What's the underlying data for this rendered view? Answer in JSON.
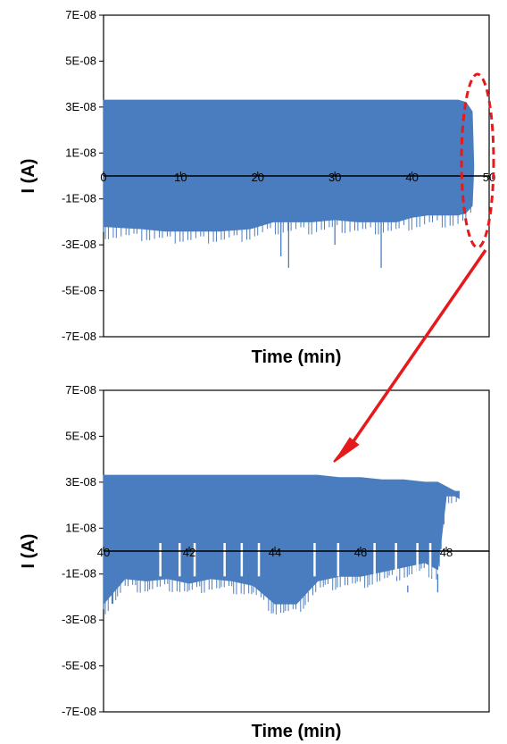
{
  "colors": {
    "series": "#4a7dbf",
    "ellipse": "#e41a1c",
    "arrow": "#e41a1c",
    "axis": "#000000"
  },
  "annotation": {
    "type": "dashed-ellipse-with-arrow",
    "meaning": "zoom on the end of the top trace into the bottom panel"
  },
  "chart_data": [
    {
      "type": "line",
      "xlabel": "Time (min)",
      "ylabel": "I (A)",
      "xlim": [
        0,
        50
      ],
      "ylim": [
        -7e-08,
        7e-08
      ],
      "x_ticks": [
        "0",
        "10",
        "20",
        "30",
        "40",
        "50"
      ],
      "y_ticks": [
        "7E-08",
        "5E-08",
        "3E-08",
        "1E-08",
        "-1E-08",
        "-3E-08",
        "-5E-08",
        "-7E-08"
      ],
      "grid": false,
      "legend": "none",
      "series": [
        {
          "x": [
            0,
            5,
            8,
            10,
            15,
            19,
            20,
            22,
            25,
            27,
            30,
            33,
            35,
            38,
            40,
            42,
            44,
            46,
            47,
            47.8,
            48
          ],
          "upper": [
            3.3e-08,
            3.3e-08,
            3.3e-08,
            3.3e-08,
            3.3e-08,
            3.3e-08,
            3.3e-08,
            3.3e-08,
            3.3e-08,
            3.3e-08,
            3.3e-08,
            3.3e-08,
            3.3e-08,
            3.3e-08,
            3.3e-08,
            3.3e-08,
            3.3e-08,
            3.3e-08,
            3.2e-08,
            2.8e-08,
            5e-09
          ],
          "lower": [
            -2.2e-08,
            -2.3e-08,
            -2.4e-08,
            -2.4e-08,
            -2.4e-08,
            -2.3e-08,
            -2.2e-08,
            -2e-08,
            -2e-08,
            -2e-08,
            -1.9e-08,
            -2e-08,
            -2e-08,
            -2e-08,
            -1.8e-08,
            -1.7e-08,
            -1.7e-08,
            -1.7e-08,
            -1.6e-08,
            -1.3e-08,
            3e-09
          ],
          "spikes": [
            {
              "x": 20,
              "y": 1.5e-08
            },
            {
              "x": 23,
              "y": -3.5e-08
            },
            {
              "x": 24,
              "y": -4e-08
            },
            {
              "x": 30,
              "y": -3e-08
            },
            {
              "x": 36,
              "y": -4e-08
            }
          ]
        }
      ]
    },
    {
      "type": "line",
      "xlabel": "Time (min)",
      "ylabel": "I (A)",
      "xlim": [
        40,
        49
      ],
      "ylim": [
        -7e-08,
        7e-08
      ],
      "x_ticks": [
        "40",
        "42",
        "44",
        "46",
        "48"
      ],
      "y_ticks": [
        "7E-08",
        "5E-08",
        "3E-08",
        "1E-08",
        "-1E-08",
        "-3E-08",
        "-5E-08",
        "-7E-08"
      ],
      "grid": false,
      "legend": "none",
      "series": [
        {
          "x": [
            40,
            40.5,
            41,
            41.5,
            42,
            42.5,
            43,
            43.5,
            44,
            44.5,
            45,
            45.5,
            46,
            46.5,
            47,
            47.5,
            47.8,
            48,
            48.2,
            48.3
          ],
          "upper": [
            3.3e-08,
            3.3e-08,
            3.3e-08,
            3.3e-08,
            3.3e-08,
            3.3e-08,
            3.3e-08,
            3.3e-08,
            3.3e-08,
            3.3e-08,
            3.3e-08,
            3.2e-08,
            3.2e-08,
            3.1e-08,
            3.1e-08,
            3e-08,
            3e-08,
            2.8e-08,
            2.6e-08,
            2.6e-08
          ],
          "lower": [
            -2.3e-08,
            -1.2e-08,
            -1.3e-08,
            -1.2e-08,
            -1.4e-08,
            -1.2e-08,
            -1.3e-08,
            -1.5e-08,
            -2.3e-08,
            -2.3e-08,
            -1.3e-08,
            -1.1e-08,
            -1.1e-08,
            -9e-09,
            -7e-09,
            -5e-09,
            -8e-09,
            2.4e-08,
            2.4e-08,
            2.3e-08
          ],
          "spikes": [
            {
              "x": 40.2,
              "y": -2.3e-08
            },
            {
              "x": 44.3,
              "y": -2.3e-08
            },
            {
              "x": 45.3,
              "y": -1.8e-08
            },
            {
              "x": 47.1,
              "y": -1.5e-08
            },
            {
              "x": 47.8,
              "y": -1e-08
            }
          ]
        }
      ]
    }
  ]
}
